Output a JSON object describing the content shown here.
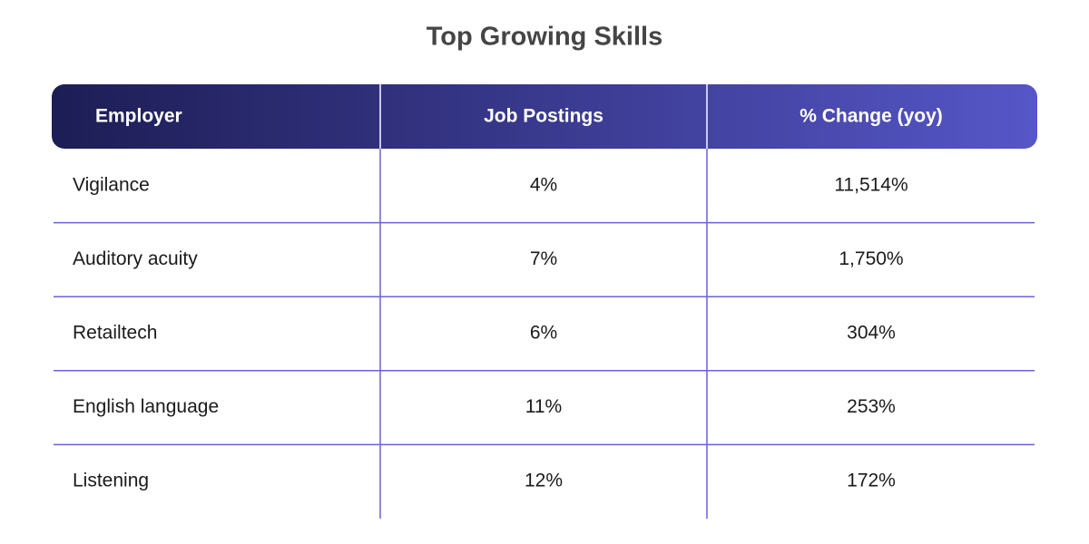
{
  "title": "Top Growing Skills",
  "table": {
    "header": [
      "Employer",
      "Job Postings",
      "% Change (yoy)"
    ],
    "rows": [
      [
        "Vigilance",
        "4%",
        "11,514%"
      ],
      [
        "Auditory acuity",
        "7%",
        "1,750%"
      ],
      [
        "Retailtech",
        "6%",
        "304%"
      ],
      [
        "English language",
        "11%",
        "253%"
      ],
      [
        "Listening",
        "12%",
        "172%"
      ]
    ]
  }
}
